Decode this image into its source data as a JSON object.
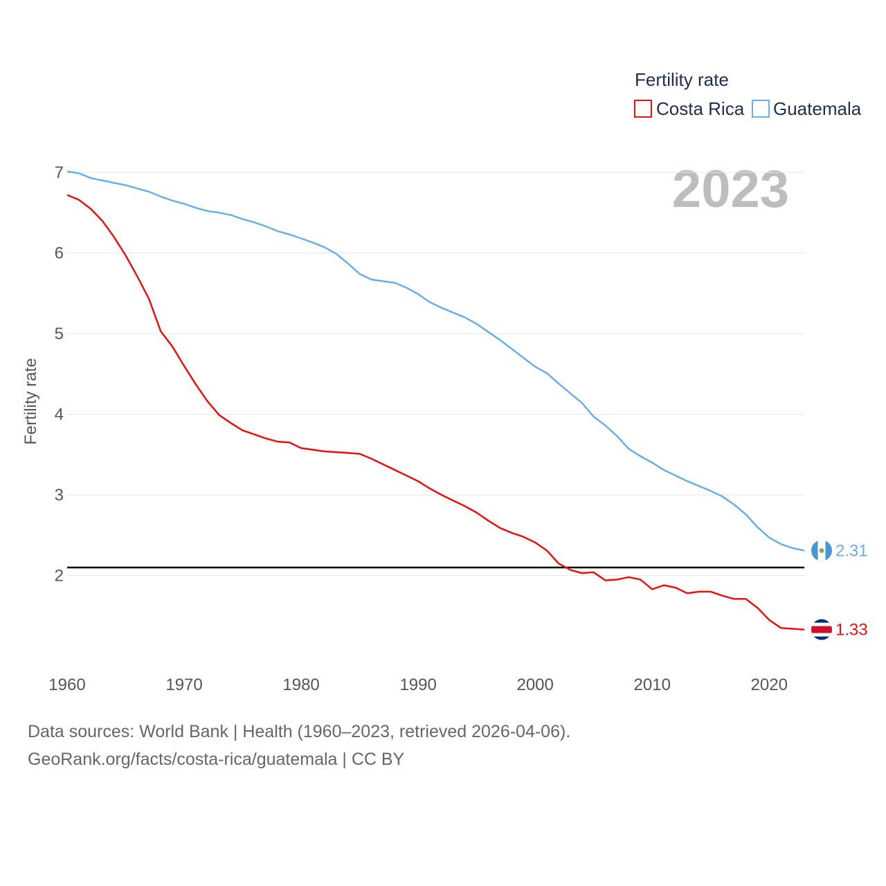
{
  "chart_data": {
    "type": "line",
    "title": "Fertility rate",
    "year_label": "2023",
    "ylabel": "Fertility rate",
    "xlabel": "",
    "xlim": [
      1960,
      2023
    ],
    "ylim": [
      1.0,
      7.0
    ],
    "x_ticks": [
      1960,
      1970,
      1980,
      1990,
      2000,
      2010,
      2020
    ],
    "y_ticks": [
      2,
      3,
      4,
      5,
      6,
      7
    ],
    "reference_line": 2.1,
    "legend_title": "Fertility rate",
    "series": [
      {
        "name": "Costa Rica",
        "color": "#e8100f",
        "end_label": "1.33",
        "x": [
          1960,
          1961,
          1962,
          1963,
          1964,
          1965,
          1966,
          1967,
          1968,
          1969,
          1970,
          1971,
          1972,
          1973,
          1974,
          1975,
          1976,
          1977,
          1978,
          1979,
          1980,
          1981,
          1982,
          1983,
          1984,
          1985,
          1986,
          1987,
          1988,
          1989,
          1990,
          1991,
          1992,
          1993,
          1994,
          1995,
          1996,
          1997,
          1998,
          1999,
          2000,
          2001,
          2002,
          2003,
          2004,
          2005,
          2006,
          2007,
          2008,
          2009,
          2010,
          2011,
          2012,
          2013,
          2014,
          2015,
          2016,
          2017,
          2018,
          2019,
          2020,
          2021,
          2022,
          2023
        ],
        "values": [
          6.72,
          6.66,
          6.55,
          6.4,
          6.2,
          5.97,
          5.71,
          5.43,
          5.03,
          4.84,
          4.6,
          4.37,
          4.16,
          3.99,
          3.89,
          3.8,
          3.75,
          3.7,
          3.66,
          3.65,
          3.58,
          3.56,
          3.54,
          3.53,
          3.52,
          3.51,
          3.45,
          3.38,
          3.31,
          3.24,
          3.17,
          3.08,
          3.0,
          2.93,
          2.86,
          2.78,
          2.68,
          2.59,
          2.53,
          2.48,
          2.41,
          2.31,
          2.15,
          2.07,
          2.03,
          2.04,
          1.94,
          1.95,
          1.98,
          1.95,
          1.83,
          1.88,
          1.85,
          1.78,
          1.8,
          1.8,
          1.75,
          1.71,
          1.71,
          1.6,
          1.45,
          1.35,
          1.34,
          1.33
        ]
      },
      {
        "name": "Guatemala",
        "color": "#6aaee8",
        "end_label": "2.31",
        "x": [
          1960,
          1961,
          1962,
          1963,
          1964,
          1965,
          1966,
          1967,
          1968,
          1969,
          1970,
          1971,
          1972,
          1973,
          1974,
          1975,
          1976,
          1977,
          1978,
          1979,
          1980,
          1981,
          1982,
          1983,
          1984,
          1985,
          1986,
          1987,
          1988,
          1989,
          1990,
          1991,
          1992,
          1993,
          1994,
          1995,
          1996,
          1997,
          1998,
          1999,
          2000,
          2001,
          2002,
          2003,
          2004,
          2005,
          2006,
          2007,
          2008,
          2009,
          2010,
          2011,
          2012,
          2013,
          2014,
          2015,
          2016,
          2017,
          2018,
          2019,
          2020,
          2021,
          2022,
          2023
        ],
        "values": [
          7.01,
          6.99,
          6.93,
          6.9,
          6.87,
          6.84,
          6.8,
          6.76,
          6.7,
          6.65,
          6.61,
          6.56,
          6.52,
          6.5,
          6.47,
          6.42,
          6.38,
          6.33,
          6.27,
          6.23,
          6.18,
          6.13,
          6.07,
          5.99,
          5.87,
          5.74,
          5.67,
          5.65,
          5.63,
          5.57,
          5.49,
          5.39,
          5.32,
          5.26,
          5.2,
          5.12,
          5.02,
          4.92,
          4.81,
          4.7,
          4.59,
          4.51,
          4.38,
          4.26,
          4.14,
          3.97,
          3.86,
          3.73,
          3.57,
          3.48,
          3.4,
          3.31,
          3.24,
          3.17,
          3.11,
          3.05,
          2.98,
          2.88,
          2.76,
          2.6,
          2.47,
          2.39,
          2.34,
          2.31
        ]
      }
    ]
  },
  "footer": {
    "line1": "Data sources: World Bank | Health (1960–2023, retrieved 2026-04-06).",
    "line2": "GeoRank.org/facts/costa-rica/guatemala | CC BY"
  }
}
